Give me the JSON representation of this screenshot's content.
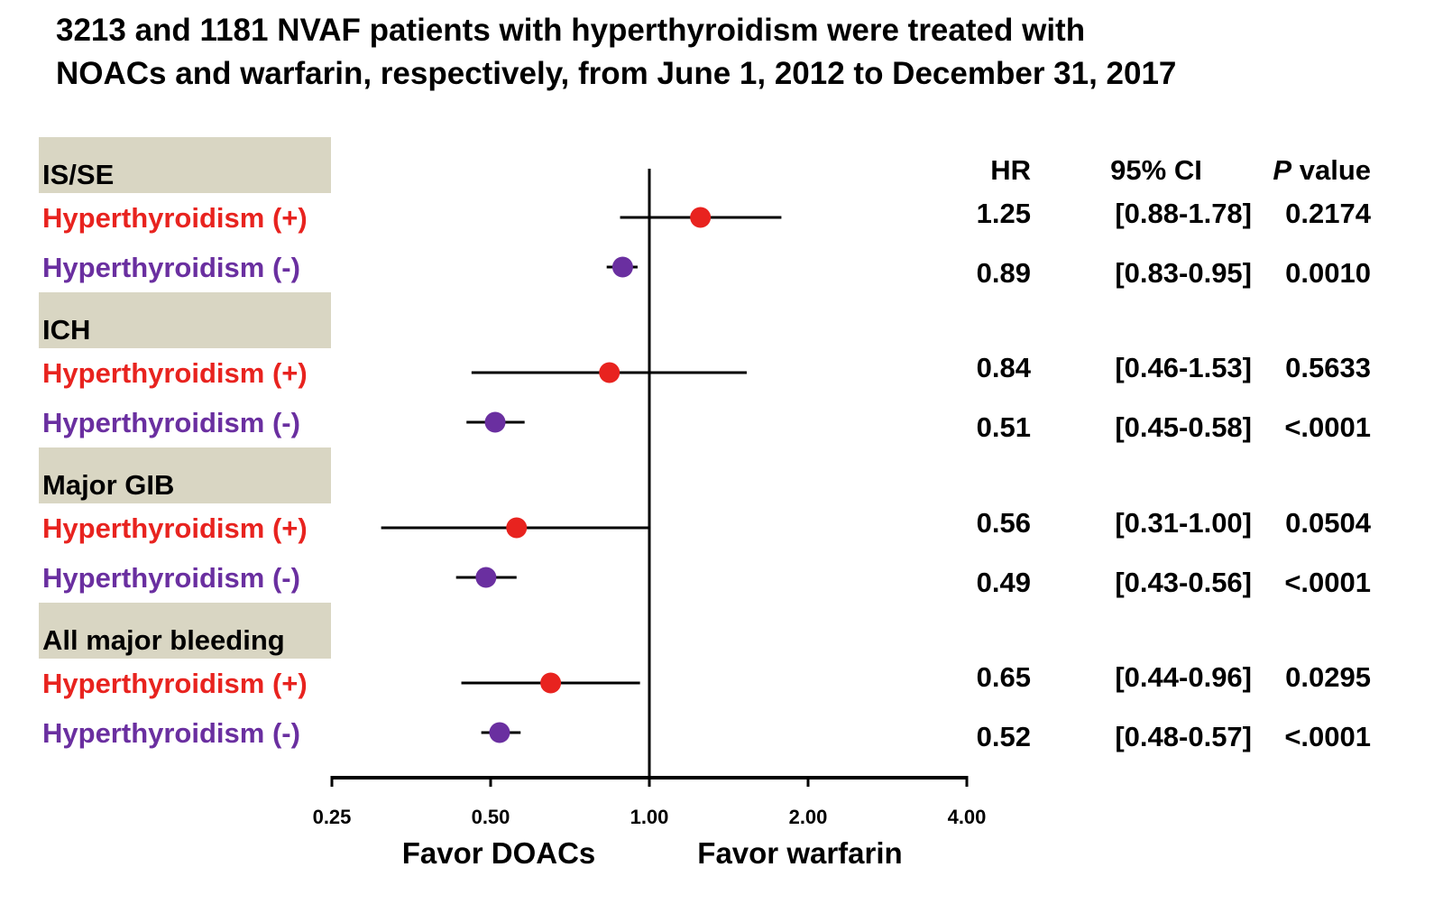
{
  "title_lines": [
    "3213 and 1181 NVAF patients with hyperthyroidism were treated with",
    "NOACs and warfarin, respectively, from June 1, 2012 to December 31, 2017"
  ],
  "colors": {
    "positive": "#e8231f",
    "negative": "#6a2fa0",
    "group_header_bg": "#d9d6c3",
    "axis": "#000000"
  },
  "chart_data": {
    "type": "forest",
    "x_scale": "log2",
    "xlim": [
      0.25,
      4.0
    ],
    "reference_line": 1.0,
    "xticks": [
      0.25,
      0.5,
      1.0,
      2.0,
      4.0
    ],
    "xtick_labels": [
      "0.25",
      "0.50",
      "1.00",
      "2.00",
      "4.00"
    ],
    "left_annotation": "Favor DOACs",
    "right_annotation": "Favor warfarin",
    "column_headers": {
      "hr": "HR",
      "ci": "95% CI",
      "p_italic": "P",
      "p_rest": " value"
    },
    "groups": [
      {
        "name": "IS/SE",
        "rows": [
          {
            "label": "Hyperthyroidism (+)",
            "kind": "positive",
            "hr": 1.25,
            "ci_low": 0.88,
            "ci_high": 1.78,
            "hr_text": "1.25",
            "ci_text": "[0.88-1.78]",
            "p_text": "0.2174"
          },
          {
            "label": "Hyperthyroidism (-)",
            "kind": "negative",
            "hr": 0.89,
            "ci_low": 0.83,
            "ci_high": 0.95,
            "hr_text": "0.89",
            "ci_text": "[0.83-0.95]",
            "p_text": "0.0010"
          }
        ]
      },
      {
        "name": "ICH",
        "rows": [
          {
            "label": "Hyperthyroidism (+)",
            "kind": "positive",
            "hr": 0.84,
            "ci_low": 0.46,
            "ci_high": 1.53,
            "hr_text": "0.84",
            "ci_text": "[0.46-1.53]",
            "p_text": "0.5633"
          },
          {
            "label": "Hyperthyroidism (-)",
            "kind": "negative",
            "hr": 0.51,
            "ci_low": 0.45,
            "ci_high": 0.58,
            "hr_text": "0.51",
            "ci_text": "[0.45-0.58]",
            "p_text": "<.0001"
          }
        ]
      },
      {
        "name": "Major GIB",
        "rows": [
          {
            "label": "Hyperthyroidism (+)",
            "kind": "positive",
            "hr": 0.56,
            "ci_low": 0.31,
            "ci_high": 1.0,
            "hr_text": "0.56",
            "ci_text": "[0.31-1.00]",
            "p_text": "0.0504"
          },
          {
            "label": "Hyperthyroidism (-)",
            "kind": "negative",
            "hr": 0.49,
            "ci_low": 0.43,
            "ci_high": 0.56,
            "hr_text": "0.49",
            "ci_text": "[0.43-0.56]",
            "p_text": "<.0001"
          }
        ]
      },
      {
        "name": "All major bleeding",
        "rows": [
          {
            "label": "Hyperthyroidism (+)",
            "kind": "positive",
            "hr": 0.65,
            "ci_low": 0.44,
            "ci_high": 0.96,
            "hr_text": "0.65",
            "ci_text": "[0.44-0.96]",
            "p_text": "0.0295"
          },
          {
            "label": "Hyperthyroidism (-)",
            "kind": "negative",
            "hr": 0.52,
            "ci_low": 0.48,
            "ci_high": 0.57,
            "hr_text": "0.52",
            "ci_text": "[0.48-0.57]",
            "p_text": "<.0001"
          }
        ]
      }
    ]
  }
}
